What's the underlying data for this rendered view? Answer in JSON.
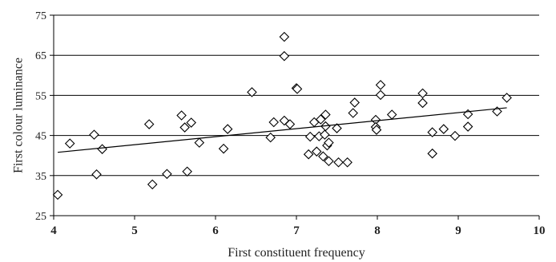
{
  "chart_data": {
    "type": "scatter",
    "title": "",
    "xlabel": "First constituent frequency",
    "ylabel": "First colour luminance",
    "xlim": [
      4,
      10
    ],
    "ylim": [
      25,
      75
    ],
    "xticks": [
      "4",
      "5",
      "6",
      "7",
      "8",
      "9",
      "10"
    ],
    "yticks": [
      "25",
      "35",
      "45",
      "55",
      "65",
      "75"
    ],
    "grid": "horizontal",
    "marker": "diamond",
    "marker_color": "#000000",
    "trendline": {
      "type": "linear",
      "from": [
        4.05,
        40.8
      ],
      "to": [
        9.6,
        51.9
      ]
    },
    "points": [
      [
        4.05,
        30.2
      ],
      [
        4.2,
        43.0
      ],
      [
        4.5,
        45.2
      ],
      [
        4.53,
        35.3
      ],
      [
        4.6,
        41.6
      ],
      [
        5.18,
        47.8
      ],
      [
        5.22,
        32.8
      ],
      [
        5.4,
        35.4
      ],
      [
        5.58,
        50.0
      ],
      [
        5.62,
        47.0
      ],
      [
        5.65,
        36.0
      ],
      [
        5.7,
        48.2
      ],
      [
        5.8,
        43.2
      ],
      [
        6.1,
        41.7
      ],
      [
        6.15,
        46.6
      ],
      [
        6.45,
        55.8
      ],
      [
        6.68,
        44.5
      ],
      [
        6.72,
        48.3
      ],
      [
        6.85,
        48.7
      ],
      [
        6.85,
        69.6
      ],
      [
        6.85,
        64.8
      ],
      [
        6.92,
        47.8
      ],
      [
        7.0,
        56.8
      ],
      [
        7.01,
        56.6
      ],
      [
        7.15,
        40.3
      ],
      [
        7.17,
        44.7
      ],
      [
        7.22,
        48.3
      ],
      [
        7.25,
        41.0
      ],
      [
        7.28,
        44.8
      ],
      [
        7.3,
        49.0
      ],
      [
        7.33,
        39.8
      ],
      [
        7.35,
        45.2
      ],
      [
        7.36,
        50.2
      ],
      [
        7.36,
        47.3
      ],
      [
        7.38,
        42.5
      ],
      [
        7.4,
        43.2
      ],
      [
        7.4,
        38.6
      ],
      [
        7.5,
        46.8
      ],
      [
        7.52,
        38.3
      ],
      [
        7.63,
        38.3
      ],
      [
        7.7,
        50.6
      ],
      [
        7.72,
        53.2
      ],
      [
        7.98,
        48.9
      ],
      [
        7.98,
        47.1
      ],
      [
        7.99,
        46.4
      ],
      [
        8.04,
        57.6
      ],
      [
        8.04,
        55.1
      ],
      [
        8.18,
        50.2
      ],
      [
        8.56,
        55.5
      ],
      [
        8.56,
        53.1
      ],
      [
        8.68,
        40.5
      ],
      [
        8.68,
        45.8
      ],
      [
        8.82,
        46.6
      ],
      [
        8.96,
        44.9
      ],
      [
        9.12,
        50.3
      ],
      [
        9.12,
        47.2
      ],
      [
        9.48,
        51.0
      ],
      [
        9.6,
        54.4
      ]
    ]
  }
}
